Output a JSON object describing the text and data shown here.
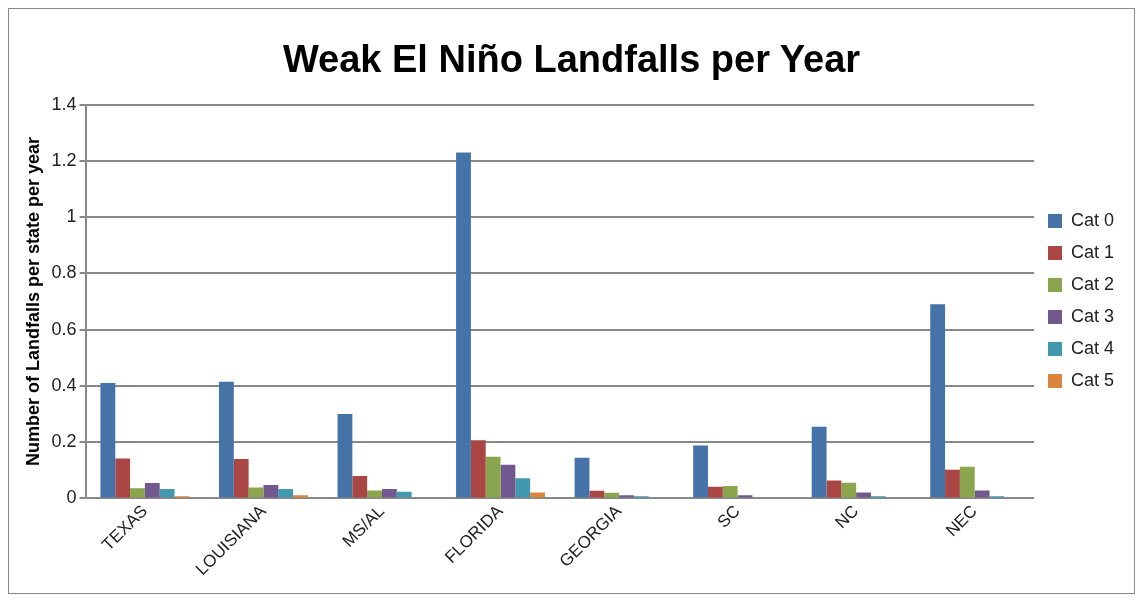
{
  "chart_data": {
    "type": "bar",
    "title": "Weak El Niño Landfalls per Year",
    "ylabel": "Number of Landfalls per state per year",
    "categories": [
      "TEXAS",
      "LOUISIANA",
      "MS/AL",
      "FLORIDA",
      "GEORGIA",
      "SC",
      "NC",
      "NEC"
    ],
    "series": [
      {
        "name": "Cat 0",
        "color": "#4572a7",
        "values": [
          0.41,
          0.415,
          0.3,
          1.23,
          0.145,
          0.188,
          0.255,
          0.69
        ]
      },
      {
        "name": "Cat 1",
        "color": "#aa4643",
        "values": [
          0.142,
          0.14,
          0.08,
          0.207,
          0.027,
          0.042,
          0.064,
          0.102
        ]
      },
      {
        "name": "Cat 2",
        "color": "#89a54e",
        "values": [
          0.036,
          0.039,
          0.028,
          0.148,
          0.02,
          0.044,
          0.056,
          0.113
        ]
      },
      {
        "name": "Cat 3",
        "color": "#71588f",
        "values": [
          0.055,
          0.048,
          0.034,
          0.12,
          0.011,
          0.011,
          0.021,
          0.028
        ]
      },
      {
        "name": "Cat 4",
        "color": "#4198af",
        "values": [
          0.034,
          0.034,
          0.024,
          0.072,
          0.008,
          null,
          0.008,
          0.008
        ]
      },
      {
        "name": "Cat 5",
        "color": "#db843d",
        "values": [
          0.008,
          0.011,
          null,
          0.021,
          0.003,
          0.003,
          0.003,
          0.003
        ]
      }
    ],
    "ylim": [
      0,
      1.4
    ],
    "yticks": [
      0,
      0.2,
      0.4,
      0.6,
      0.8,
      1,
      1.2,
      1.4
    ],
    "grid": "y",
    "legend": "right"
  }
}
